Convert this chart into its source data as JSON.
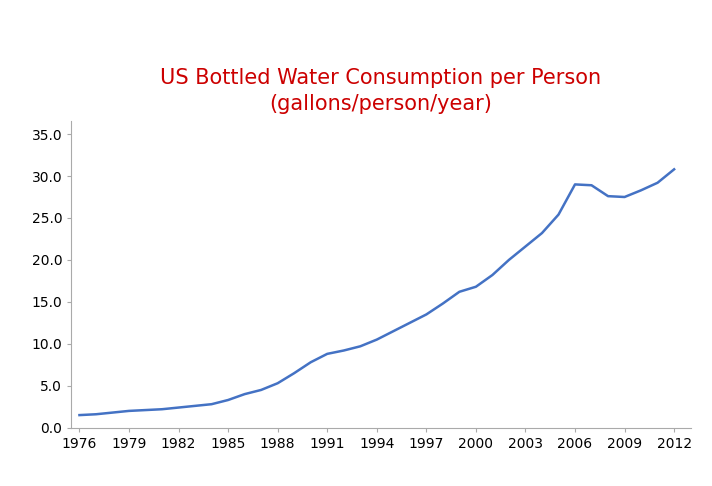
{
  "title_line1": "US Bottled Water Consumption per Person",
  "title_line2": "(gallons/person/year)",
  "title_color": "#cc0000",
  "line_color": "#4472c4",
  "line_width": 1.8,
  "years": [
    1976,
    1977,
    1978,
    1979,
    1980,
    1981,
    1982,
    1983,
    1984,
    1985,
    1986,
    1987,
    1988,
    1989,
    1990,
    1991,
    1992,
    1993,
    1994,
    1995,
    1996,
    1997,
    1998,
    1999,
    2000,
    2001,
    2002,
    2003,
    2004,
    2005,
    2006,
    2007,
    2008,
    2009,
    2010,
    2011,
    2012
  ],
  "values": [
    1.5,
    1.6,
    1.8,
    2.0,
    2.1,
    2.2,
    2.4,
    2.6,
    2.8,
    3.3,
    4.0,
    4.5,
    5.3,
    6.5,
    7.8,
    8.8,
    9.2,
    9.7,
    10.5,
    11.5,
    12.5,
    13.5,
    14.8,
    16.2,
    16.8,
    18.2,
    20.0,
    21.6,
    23.2,
    25.4,
    29.0,
    28.9,
    27.6,
    27.5,
    28.3,
    29.2,
    30.8
  ],
  "xticks": [
    1976,
    1979,
    1982,
    1985,
    1988,
    1991,
    1994,
    1997,
    2000,
    2003,
    2006,
    2009,
    2012
  ],
  "yticks": [
    0.0,
    5.0,
    10.0,
    15.0,
    20.0,
    25.0,
    30.0,
    35.0
  ],
  "xlim": [
    1975.5,
    2013.0
  ],
  "ylim": [
    0.0,
    36.5
  ],
  "background_color": "#ffffff",
  "title_fontsize": 15,
  "tick_fontsize": 10,
  "spine_color": "#aaaaaa"
}
